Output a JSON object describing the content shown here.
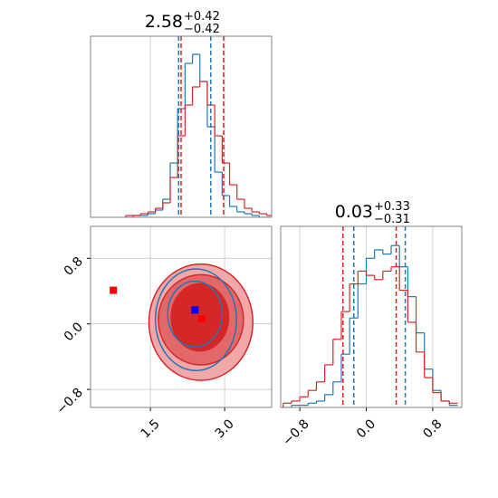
{
  "chart_data": [
    {
      "type": "histogram",
      "title": {
        "value": "2.58",
        "upper": "+0.42",
        "lower": "−0.42"
      },
      "bins": [
        1.0,
        1.15,
        1.3,
        1.45,
        1.6,
        1.75,
        1.9,
        2.05,
        2.2,
        2.35,
        2.5,
        2.65,
        2.8,
        2.95,
        3.1,
        3.25,
        3.4,
        3.55,
        3.7,
        3.85,
        4.0
      ],
      "series": [
        {
          "color": "#1f77b4",
          "values": [
            0,
            1,
            1,
            2,
            4,
            10,
            30,
            60,
            85,
            90,
            75,
            50,
            25,
            12,
            6,
            3,
            2,
            1,
            0,
            0
          ]
        },
        {
          "color": "#d62728",
          "values": [
            1,
            1,
            2,
            3,
            5,
            8,
            22,
            45,
            62,
            72,
            75,
            62,
            45,
            30,
            18,
            10,
            5,
            3,
            2,
            1
          ]
        }
      ],
      "quantiles": [
        {
          "color": "#1f77b4",
          "values": [
            2.07,
            2.72
          ]
        },
        {
          "color": "#d62728",
          "values": [
            2.12,
            2.98
          ]
        }
      ],
      "xlim": [
        0.29,
        3.95
      ],
      "ylim": [
        0,
        100
      ],
      "xticks": [
        1.5,
        {
          "value": 3,
          "label": "3.0"
        }
      ],
      "tick_labels": false,
      "grid": true
    },
    {
      "type": "contour",
      "xlim": [
        0.29,
        3.95
      ],
      "ylim": [
        -1.02,
        1.19
      ],
      "xticks": [
        1.5,
        {
          "value": 3,
          "label": "3.0"
        }
      ],
      "yticks": [
        {
          "value": -0.8,
          "label": "−0.8"
        },
        {
          "value": 0,
          "label": "0.0"
        },
        0.8
      ],
      "grid": true,
      "contours": [
        {
          "color": "#d62728",
          "filled": true,
          "fills": [
            "#f2a8a9",
            "#e3686a",
            "#d62728"
          ],
          "levels": [
            {
              "cx": 2.52,
              "cy": 0.02,
              "rx": 1.05,
              "ry": 0.71
            },
            {
              "cx": 2.52,
              "cy": 0.05,
              "rx": 0.86,
              "ry": 0.55
            },
            {
              "cx": 2.5,
              "cy": 0.08,
              "rx": 0.58,
              "ry": 0.41
            }
          ]
        },
        {
          "color": "#1f77b4",
          "filled": false,
          "levels": [
            {
              "cx": 2.42,
              "cy": 0.05,
              "rx": 0.82,
              "ry": 0.62
            },
            {
              "cx": 2.4,
              "cy": 0.12,
              "rx": 0.55,
              "ry": 0.4
            }
          ]
        }
      ],
      "markers": [
        {
          "color": "#0000ff",
          "x": 2.4,
          "y": 0.17
        },
        {
          "color": "#ff0000",
          "x": 0.75,
          "y": 0.41
        },
        {
          "color": "#ff0000",
          "x": 2.54,
          "y": 0.06
        }
      ]
    },
    {
      "type": "histogram",
      "title": {
        "value": "0.03",
        "upper": "+0.33",
        "lower": "−0.31"
      },
      "bins": [
        -1.0,
        -0.9,
        -0.8,
        -0.7,
        -0.6,
        -0.5,
        -0.4,
        -0.3,
        -0.2,
        -0.1,
        0.0,
        0.1,
        0.2,
        0.3,
        0.4,
        0.5,
        0.6,
        0.7,
        0.8,
        0.9,
        1.0,
        1.1
      ],
      "series": [
        {
          "color": "#1f77b4",
          "values": [
            0,
            1,
            1,
            2,
            3,
            6,
            12,
            25,
            42,
            58,
            70,
            74,
            72,
            76,
            66,
            52,
            35,
            18,
            8,
            3,
            1
          ]
        },
        {
          "color": "#d62728",
          "values": [
            2,
            3,
            5,
            8,
            12,
            20,
            32,
            45,
            58,
            64,
            62,
            60,
            64,
            66,
            55,
            40,
            26,
            14,
            7,
            3,
            2
          ]
        }
      ],
      "quantiles": [
        {
          "color": "#1f77b4",
          "values": [
            -0.15,
            0.47
          ]
        },
        {
          "color": "#d62728",
          "values": [
            -0.28,
            0.36
          ]
        }
      ],
      "xlim": [
        -1.03,
        1.15
      ],
      "ylim": [
        0,
        85
      ],
      "xticks": [
        {
          "value": -0.8,
          "label": "−0.8"
        },
        {
          "value": 0,
          "label": "0.0"
        },
        0.8
      ],
      "tick_labels": true,
      "grid": true
    }
  ]
}
